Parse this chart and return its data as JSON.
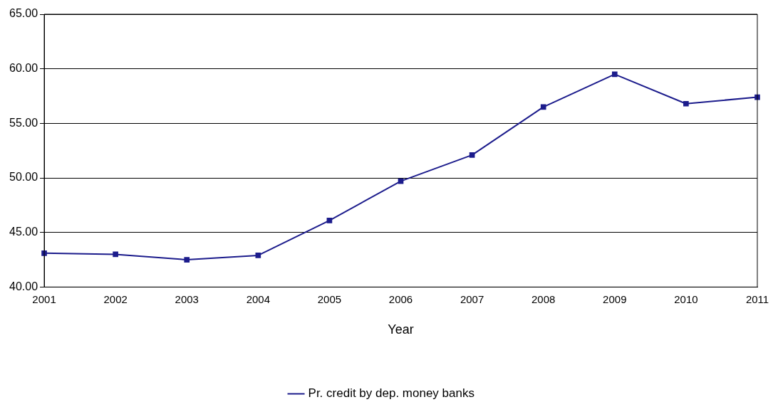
{
  "chart_data": {
    "type": "line",
    "xlabel": "Year",
    "categories": [
      "2001",
      "2002",
      "2003",
      "2004",
      "2005",
      "2006",
      "2007",
      "2008",
      "2009",
      "2010",
      "2011"
    ],
    "series": [
      {
        "name": "Pr. credit by dep. money banks",
        "color": "#1c1c8c",
        "values": [
          43.1,
          43.0,
          42.5,
          42.9,
          46.1,
          49.7,
          52.1,
          56.5,
          59.5,
          56.8,
          57.4
        ]
      }
    ],
    "ylim": [
      40,
      65
    ],
    "yticks": [
      {
        "value": 40,
        "label": "40.00"
      },
      {
        "value": 45,
        "label": "45.00"
      },
      {
        "value": 50,
        "label": "50.00"
      },
      {
        "value": 55,
        "label": "55.00"
      },
      {
        "value": 60,
        "label": "60.00"
      },
      {
        "value": 65,
        "label": "65.00"
      }
    ],
    "grid": "y",
    "legend": "bottom",
    "marker": "square",
    "line_style": "solid"
  }
}
